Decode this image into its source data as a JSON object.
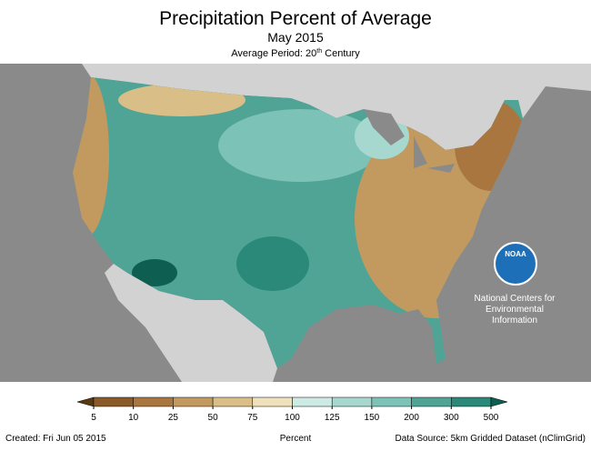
{
  "header": {
    "title": "Precipitation Percent of Average",
    "subtitle": "May 2015",
    "period": {
      "text": "Average Period: 20",
      "sup": "th",
      "rest": " Century"
    }
  },
  "logo": {
    "name": "NOAA",
    "lines": [
      "National Centers for",
      "Environmental",
      "Information"
    ]
  },
  "legend": {
    "label": "Percent",
    "ticks": [
      5,
      10,
      25,
      50,
      75,
      100,
      125,
      150,
      200,
      300,
      500
    ],
    "colors": [
      "#5a3810",
      "#8a5a28",
      "#a8763e",
      "#c29a60",
      "#d9be88",
      "#efe1bb",
      "#cdebe4",
      "#a6d8cf",
      "#7dc2b6",
      "#4fa495",
      "#2a8978",
      "#0e5e51"
    ]
  },
  "footer": {
    "created": "Created: Fri Jun 05 2015",
    "source": "Data Source: 5km Gridded Dataset (nClimGrid)"
  }
}
